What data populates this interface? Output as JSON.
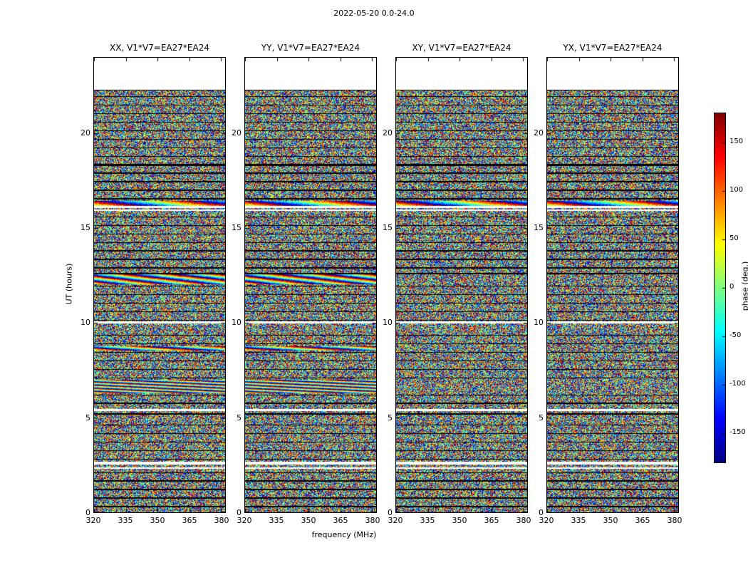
{
  "colors": {
    "background": "#ffffff",
    "frame": "#000000"
  },
  "chart_data": {
    "type": "heatmap",
    "title": "2022-05-20 0.0-24.0",
    "panels": [
      {
        "label": "XX, V1*V7=EA27*EA24",
        "pol": "XX"
      },
      {
        "label": "YY, V1*V7=EA27*EA24",
        "pol": "YY"
      },
      {
        "label": "XY, V1*V7=EA27*EA24",
        "pol": "XY"
      },
      {
        "label": "YX, V1*V7=EA27*EA24",
        "pol": "YX"
      }
    ],
    "xlabel": "frequency (MHz)",
    "ylabel": "UT (hours)",
    "x_range": [
      320,
      382
    ],
    "y_range": [
      0,
      24
    ],
    "x_ticks": [
      320,
      335,
      350,
      365,
      380
    ],
    "y_ticks": [
      0,
      5,
      10,
      15,
      20
    ],
    "colorbar": {
      "label": "phase (deg.)",
      "ticks": [
        150,
        100,
        50,
        0,
        -50,
        -100,
        -150
      ],
      "vmin": -180,
      "vmax": 180,
      "colormap": "jet"
    },
    "values_description": "random interferometric phase noise per time-frequency cell",
    "time_axis_features": {
      "no_data_above_hours": 22.3,
      "white_gaps_hours": [
        [
          15.93,
          16.0
        ],
        [
          16.05,
          16.18
        ],
        [
          9.95,
          10.08
        ],
        [
          5.33,
          5.45
        ],
        [
          2.52,
          2.68
        ],
        [
          2.28,
          2.36
        ]
      ],
      "black_lines_hours": [
        [
          22.3,
          2
        ],
        [
          21.95,
          1
        ],
        [
          21.5,
          1
        ],
        [
          21.05,
          1
        ],
        [
          20.6,
          1
        ],
        [
          20.15,
          1
        ],
        [
          19.7,
          1
        ],
        [
          19.25,
          1
        ],
        [
          18.8,
          1
        ],
        [
          18.35,
          3
        ],
        [
          17.9,
          1
        ],
        [
          17.45,
          1
        ],
        [
          17.0,
          1
        ],
        [
          16.55,
          1
        ],
        [
          15.6,
          1
        ],
        [
          15.15,
          1
        ],
        [
          14.7,
          1
        ],
        [
          14.25,
          1
        ],
        [
          13.8,
          1
        ],
        [
          13.35,
          1
        ],
        [
          12.9,
          1
        ],
        [
          12.6,
          1
        ],
        [
          11.95,
          1
        ],
        [
          11.5,
          1
        ],
        [
          11.05,
          1
        ],
        [
          10.6,
          1
        ],
        [
          10.15,
          1
        ],
        [
          9.35,
          1
        ],
        [
          8.9,
          1
        ],
        [
          8.45,
          1
        ],
        [
          8.0,
          1
        ],
        [
          7.55,
          1
        ],
        [
          7.1,
          1
        ],
        [
          6.2,
          1
        ],
        [
          5.75,
          1
        ],
        [
          5.2,
          2
        ],
        [
          4.6,
          1
        ],
        [
          4.15,
          1
        ],
        [
          3.7,
          1
        ],
        [
          3.25,
          1
        ],
        [
          2.8,
          1
        ],
        [
          2.1,
          1
        ],
        [
          1.65,
          1
        ],
        [
          1.2,
          1
        ],
        [
          0.75,
          1
        ],
        [
          0.3,
          1
        ]
      ],
      "stripe_bands": [
        {
          "t0": 12.05,
          "t1": 12.55,
          "panels": [
            0,
            1
          ],
          "period_mhz": 22,
          "drift": 3.5
        },
        {
          "t0": 6.3,
          "t1": 7.0,
          "panels": [
            0,
            1
          ],
          "period_mhz": 30,
          "drift": 6.0
        },
        {
          "t0": 16.18,
          "t1": 16.45,
          "panels": [
            0,
            1,
            2,
            3
          ],
          "period_mhz": 45,
          "drift": 2.0
        },
        {
          "t0": 8.55,
          "t1": 8.75,
          "panels": [
            0,
            1
          ],
          "period_mhz": 35,
          "drift": 4.0
        }
      ]
    }
  }
}
